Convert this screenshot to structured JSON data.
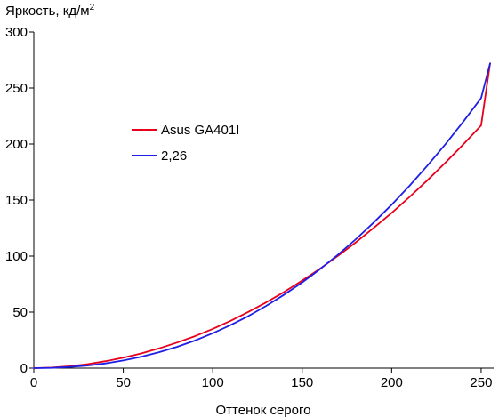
{
  "chart_data": {
    "type": "line",
    "ylabel": "Яркость, кд/м",
    "ylabel_sup": "2",
    "xlabel": "Оттенок серого",
    "xlim": [
      0,
      255
    ],
    "ylim": [
      0,
      300
    ],
    "x_ticks": [
      0,
      50,
      100,
      150,
      200,
      250
    ],
    "y_ticks": [
      0,
      50,
      100,
      150,
      200,
      250,
      300
    ],
    "grid": false,
    "legend_position": "center-left",
    "series": [
      {
        "name": "Asus GA401I",
        "color": "#e8001c",
        "x": [
          0,
          10,
          20,
          30,
          40,
          50,
          60,
          70,
          80,
          90,
          100,
          110,
          120,
          130,
          140,
          150,
          160,
          170,
          180,
          190,
          200,
          210,
          220,
          230,
          240,
          250,
          255
        ],
        "y": [
          0,
          0.5,
          1.7,
          3.6,
          6.2,
          9.3,
          13.1,
          17.6,
          22.8,
          28.5,
          35.0,
          42.2,
          50.2,
          58.8,
          68.0,
          78.2,
          88.8,
          100.2,
          112.3,
          125.2,
          138.6,
          152.8,
          167.7,
          183.3,
          199.6,
          216.6,
          272
        ]
      },
      {
        "name": "2,26",
        "color": "#1e1ee6",
        "x": [
          0,
          10,
          20,
          30,
          40,
          50,
          60,
          70,
          80,
          90,
          100,
          110,
          120,
          130,
          140,
          150,
          160,
          170,
          180,
          190,
          200,
          210,
          220,
          230,
          240,
          250,
          255
        ],
        "y": [
          0,
          0.2,
          1.0,
          2.3,
          4.2,
          6.8,
          10.1,
          14.2,
          19.0,
          24.6,
          31.1,
          38.4,
          46.5,
          55.6,
          65.6,
          76.5,
          88.4,
          101.3,
          115.1,
          130.0,
          145.9,
          162.8,
          180.8,
          199.8,
          219.9,
          241.0,
          272
        ]
      }
    ]
  }
}
